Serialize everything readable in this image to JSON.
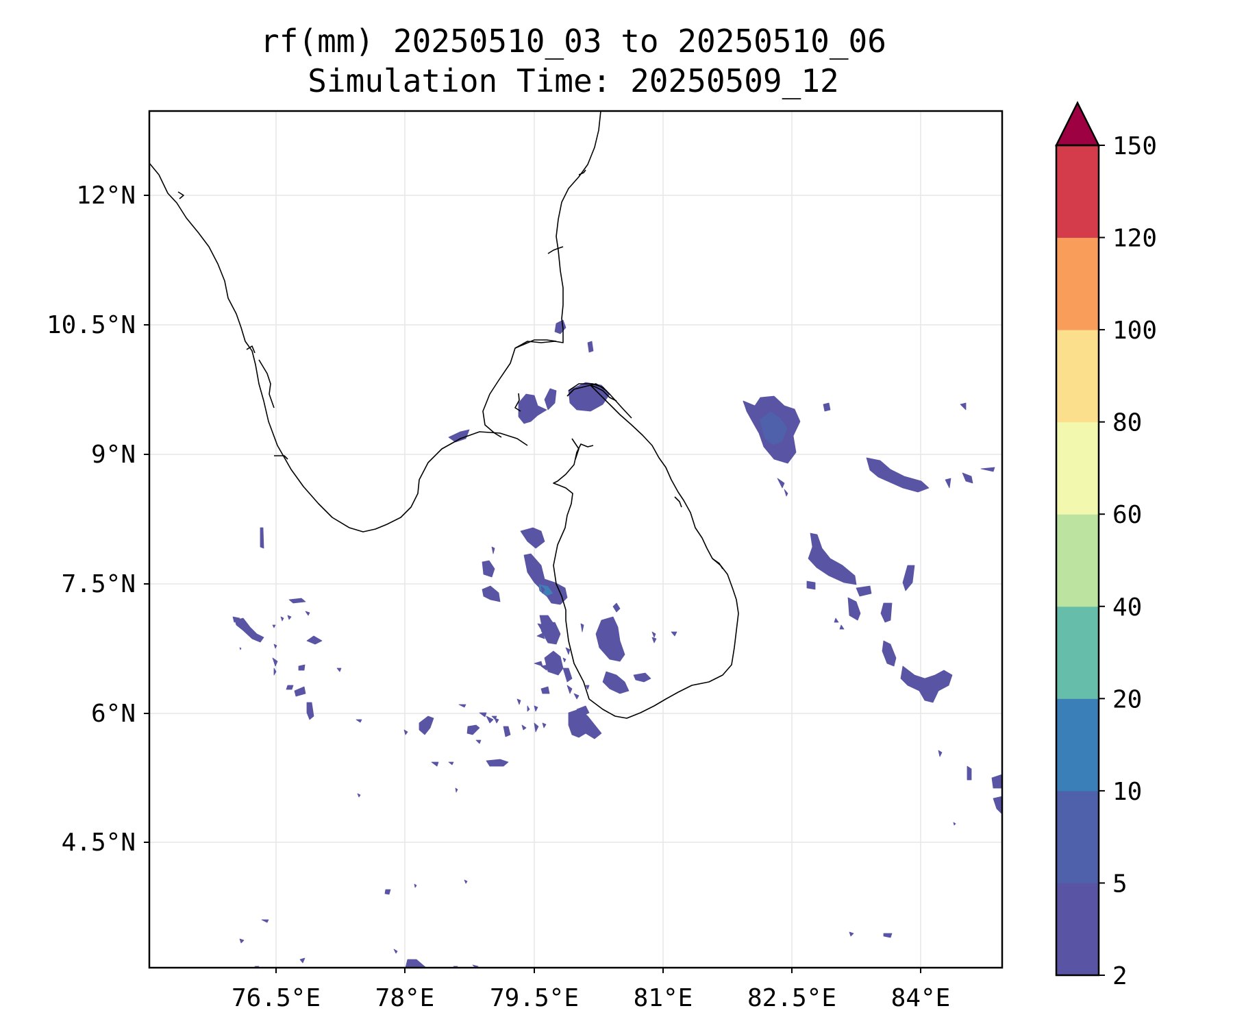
{
  "map": {
    "title_line1": "rf(mm) 20250510_03 to 20250510_06",
    "title_line2": "Simulation Time: 20250509_12",
    "x_ticks": [
      "76.5°E",
      "78°E",
      "79.5°E",
      "81°E",
      "82.5°E",
      "84°E"
    ],
    "y_ticks": [
      "12°N",
      "10.5°N",
      "9°N",
      "7.5°N",
      "6°N",
      "4.5°N"
    ],
    "colorbar": {
      "variable": "rf(mm)",
      "ticks": [
        "150",
        "120",
        "100",
        "80",
        "60",
        "40",
        "20",
        "10",
        "5",
        "2"
      ],
      "bands": [
        {
          "from": 2,
          "to": 5,
          "color": "#5954a4"
        },
        {
          "from": 5,
          "to": 10,
          "color": "#4f61ab"
        },
        {
          "from": 10,
          "to": 20,
          "color": "#3a7fb8"
        },
        {
          "from": 20,
          "to": 40,
          "color": "#65bdaa"
        },
        {
          "from": 40,
          "to": 60,
          "color": "#bde3a1"
        },
        {
          "from": 60,
          "to": 80,
          "color": "#f2f9ae"
        },
        {
          "from": 80,
          "to": 100,
          "color": "#fbdf8d"
        },
        {
          "from": 100,
          "to": 120,
          "color": "#f99d5a"
        },
        {
          "from": 120,
          "to": 150,
          "color": "#d43c4c"
        }
      ],
      "extend_color": "#9e0142",
      "extend": "max"
    },
    "colors": {
      "coastline": "#000000",
      "grid": "#e6e6e6",
      "rain_light": "#5954a4"
    }
  }
}
